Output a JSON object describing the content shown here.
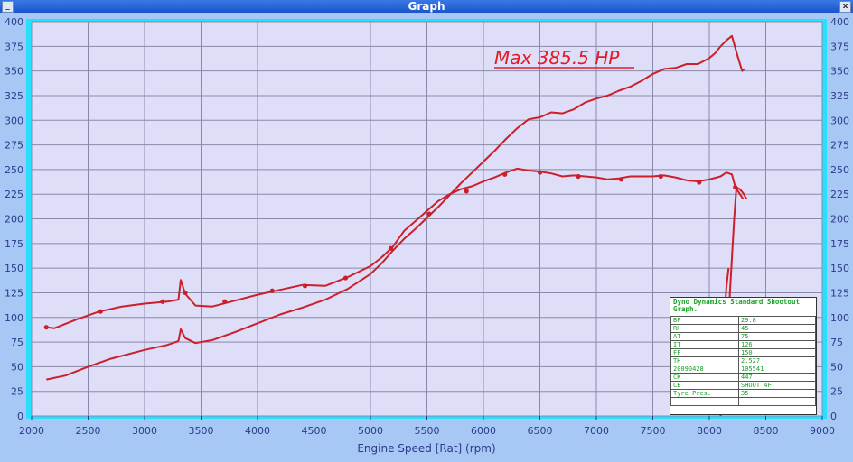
{
  "window": {
    "title": "Graph"
  },
  "chart_data": {
    "type": "line",
    "title": "",
    "xlabel": "Engine Speed [Rat] (rpm)",
    "ylabel": "",
    "xlim": [
      2000,
      9000
    ],
    "ylim": [
      0,
      400
    ],
    "x_ticks": [
      2000,
      2500,
      3000,
      3500,
      4000,
      4500,
      5000,
      5500,
      6000,
      6500,
      7000,
      7500,
      8000,
      8500,
      9000
    ],
    "y_ticks": [
      0,
      25,
      50,
      75,
      100,
      125,
      150,
      175,
      200,
      225,
      250,
      275,
      300,
      325,
      350,
      375,
      400
    ],
    "grid": true,
    "annotation": "Max 385.5 HP",
    "series": [
      {
        "color": "#cc1f2a",
        "x": [
          2130,
          2300,
          2500,
          2700,
          3000,
          3200,
          3300,
          3320,
          3360,
          3450,
          3600,
          3800,
          4000,
          4200,
          4400,
          4600,
          4800,
          5000,
          5100,
          5200,
          5300,
          5400,
          5500,
          5600,
          5700,
          5800,
          5900,
          6000,
          6100,
          6200,
          6300,
          6400,
          6500,
          6600,
          6700,
          6800,
          6900,
          7000,
          7100,
          7200,
          7300,
          7400,
          7500,
          7600,
          7700,
          7800,
          7900,
          8000,
          8050,
          8100,
          8150,
          8200,
          8250,
          8290,
          8310
        ],
        "y": [
          37,
          41,
          50,
          58,
          67,
          72,
          76,
          88,
          79,
          74,
          77,
          85,
          94,
          103,
          110,
          118,
          129,
          144,
          155,
          168,
          180,
          190,
          201,
          212,
          224,
          236,
          247,
          258,
          269,
          281,
          292,
          301,
          303,
          308,
          307,
          311,
          318,
          322,
          325,
          330,
          334,
          340,
          347,
          352,
          353,
          357,
          357,
          363,
          368,
          375,
          381,
          385.5,
          365,
          350,
          352
        ]
      },
      {
        "color": "#cc1f2a",
        "x": [
          2130,
          2200,
          2400,
          2600,
          2800,
          3000,
          3200,
          3300,
          3320,
          3360,
          3450,
          3600,
          3800,
          4000,
          4200,
          4400,
          4600,
          4800,
          5000,
          5100,
          5200,
          5300,
          5400,
          5500,
          5600,
          5700,
          5800,
          5900,
          6000,
          6100,
          6200,
          6300,
          6400,
          6500,
          6600,
          6700,
          6800,
          6900,
          7000,
          7100,
          7200,
          7300,
          7400,
          7500,
          7600,
          7700,
          7800,
          7900,
          8000,
          8100,
          8150,
          8200,
          8230,
          8300
        ],
        "y": [
          90,
          89,
          98,
          106,
          111,
          114,
          116,
          118,
          138,
          124,
          112,
          111,
          117,
          123,
          128,
          133,
          132,
          141,
          152,
          161,
          172,
          188,
          198,
          208,
          218,
          225,
          230,
          233,
          238,
          242,
          247,
          251,
          249,
          248,
          246,
          243,
          244,
          243,
          242,
          240,
          241,
          243,
          243,
          243,
          244,
          242,
          239,
          238,
          240,
          243,
          247,
          245,
          232,
          220
        ]
      },
      {
        "color": "#cc1f2a",
        "x": [
          8180,
          8200,
          8220,
          8240,
          8270,
          8300,
          8330
        ],
        "y": [
          120,
          160,
          200,
          232,
          230,
          226,
          220
        ]
      },
      {
        "color": "#cc1f2a",
        "x": [
          8100,
          8110,
          8130,
          8150,
          8170
        ],
        "y": [
          0,
          40,
          90,
          130,
          150
        ]
      }
    ],
    "markers": {
      "x": [
        2130,
        2610,
        3160,
        3360,
        3710,
        4130,
        4420,
        4780,
        5180,
        5520,
        5850,
        6190,
        6500,
        6840,
        7220,
        7570,
        7910,
        8230
      ],
      "y": [
        90,
        106,
        116,
        125,
        116,
        127,
        132,
        140,
        170,
        205,
        228,
        245,
        247,
        243,
        240,
        243,
        237,
        232
      ]
    }
  },
  "info_panel": {
    "title": "Dyno Dynamics Standard Shootout Graph.",
    "rows": [
      {
        "key": "BP",
        "value": "29.8"
      },
      {
        "key": "RH",
        "value": "45"
      },
      {
        "key": "AT",
        "value": "75"
      },
      {
        "key": "IT",
        "value": "126"
      },
      {
        "key": "FF",
        "value": "150"
      },
      {
        "key": "TH",
        "value": "2.527"
      },
      {
        "key": "20090428",
        "value": "105541"
      },
      {
        "key": "CK",
        "value": "447"
      },
      {
        "key": "CE",
        "value": "SHOOT 4F"
      },
      {
        "key": "Tyre Pres.",
        "value": "35"
      },
      {
        "key": "",
        "value": ""
      }
    ]
  }
}
